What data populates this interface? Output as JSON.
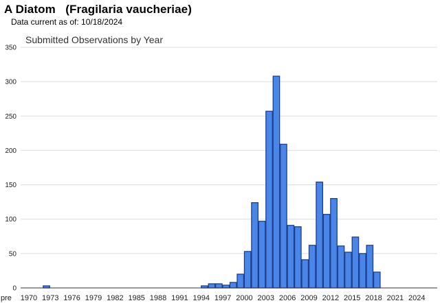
{
  "header": {
    "title": "A Diatom   (Fragilaria vaucheriae)",
    "data_date": "Data current as of: 10/18/2024"
  },
  "chart_data": {
    "type": "bar",
    "title": "Submitted Observations by Year",
    "xlabel": "",
    "ylabel": "",
    "ylim": [
      0,
      350
    ],
    "yticks": [
      0,
      50,
      100,
      150,
      200,
      250,
      300,
      350
    ],
    "grid": true,
    "categories": [
      "pre 1970",
      "1970",
      "1971",
      "1972",
      "1973",
      "1974",
      "1975",
      "1976",
      "1977",
      "1978",
      "1979",
      "1980",
      "1981",
      "1982",
      "1983",
      "1984",
      "1985",
      "1986",
      "1987",
      "1988",
      "1989",
      "1990",
      "1991",
      "1992",
      "1993",
      "1994",
      "1995",
      "1996",
      "1997",
      "1998",
      "1999",
      "2000",
      "2001",
      "2002",
      "2003",
      "2004",
      "2005",
      "2006",
      "2007",
      "2008",
      "2009",
      "2010",
      "2011",
      "2012",
      "2013",
      "2014",
      "2015",
      "2016",
      "2017",
      "2018",
      "2019",
      "2020",
      "2021",
      "2022",
      "2023",
      "2024"
    ],
    "x_tick_labels": [
      "pre",
      "1970",
      "1973",
      "1976",
      "1979",
      "1982",
      "1985",
      "1988",
      "1991",
      "1994",
      "1997",
      "2000",
      "2003",
      "2006",
      "2009",
      "2012",
      "2015",
      "2018",
      "2021",
      "2024"
    ],
    "values": [
      0,
      0,
      0,
      3,
      0,
      0,
      0,
      0,
      0,
      0,
      0,
      0,
      0,
      0,
      0,
      0,
      0,
      0,
      0,
      0,
      0,
      0,
      0,
      0,
      0,
      3,
      6,
      6,
      4,
      8,
      20,
      53,
      124,
      97,
      257,
      308,
      209,
      91,
      89,
      41,
      62,
      154,
      107,
      130,
      61,
      52,
      74,
      50,
      62,
      23,
      0,
      0,
      0,
      0,
      0,
      0
    ],
    "bar_color": "#4a86e8",
    "bar_edge_color": "#1c3f8f"
  }
}
